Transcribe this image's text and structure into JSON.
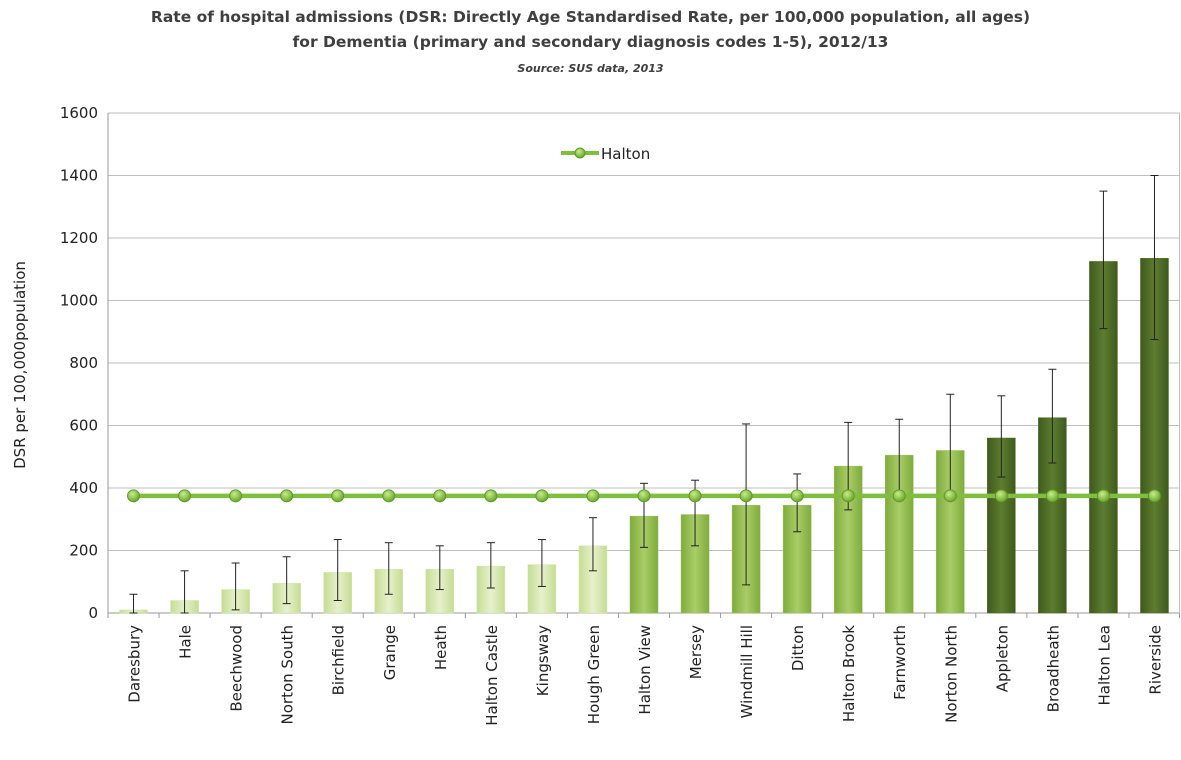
{
  "chart_data": {
    "type": "bar",
    "title": "Rate of hospital admissions (DSR: Directly Age Standardised Rate, per 100,000 population, all ages)",
    "subtitle": "for Dementia (primary and secondary diagnosis codes 1-5), 2012/13",
    "source": "Source: SUS data, 2013",
    "xlabel": "",
    "ylabel": "DSR per 100,000population",
    "ylim": [
      0,
      1600
    ],
    "yticks": [
      "0",
      "200",
      "400",
      "600",
      "800",
      "1000",
      "1200",
      "1400",
      "1600"
    ],
    "grid": true,
    "legend_position": "top-center",
    "categories": [
      "Daresbury",
      "Hale",
      "Beechwood",
      "Norton South",
      "Birchfield",
      "Grange",
      "Heath",
      "Halton Castle",
      "Kingsway",
      "Hough Green",
      "Halton View",
      "Mersey",
      "Windmill Hill",
      "Ditton",
      "Halton Brook",
      "Farnworth",
      "Norton North",
      "Appleton",
      "Broadheath",
      "Halton Lea",
      "Riverside"
    ],
    "values": [
      10,
      40,
      75,
      95,
      130,
      140,
      140,
      150,
      155,
      215,
      310,
      315,
      345,
      345,
      470,
      505,
      520,
      560,
      625,
      1125,
      1135
    ],
    "error_low": [
      0,
      0,
      10,
      30,
      40,
      60,
      75,
      80,
      85,
      135,
      210,
      215,
      90,
      260,
      330,
      370,
      370,
      435,
      480,
      910,
      875
    ],
    "error_high": [
      60,
      135,
      160,
      180,
      235,
      225,
      215,
      225,
      235,
      305,
      415,
      425,
      605,
      445,
      610,
      620,
      700,
      695,
      780,
      1350,
      1400
    ],
    "bar_groups": [
      1,
      1,
      1,
      1,
      1,
      1,
      1,
      1,
      1,
      1,
      2,
      2,
      2,
      2,
      2,
      2,
      2,
      3,
      3,
      3,
      3
    ],
    "group_colors": {
      "1": "#d5e6ad",
      "2": "#98c155",
      "3": "#4f6d27"
    },
    "series": [
      {
        "name": "Halton",
        "type": "line",
        "value": 375,
        "color": "#7fbf3f"
      }
    ]
  }
}
